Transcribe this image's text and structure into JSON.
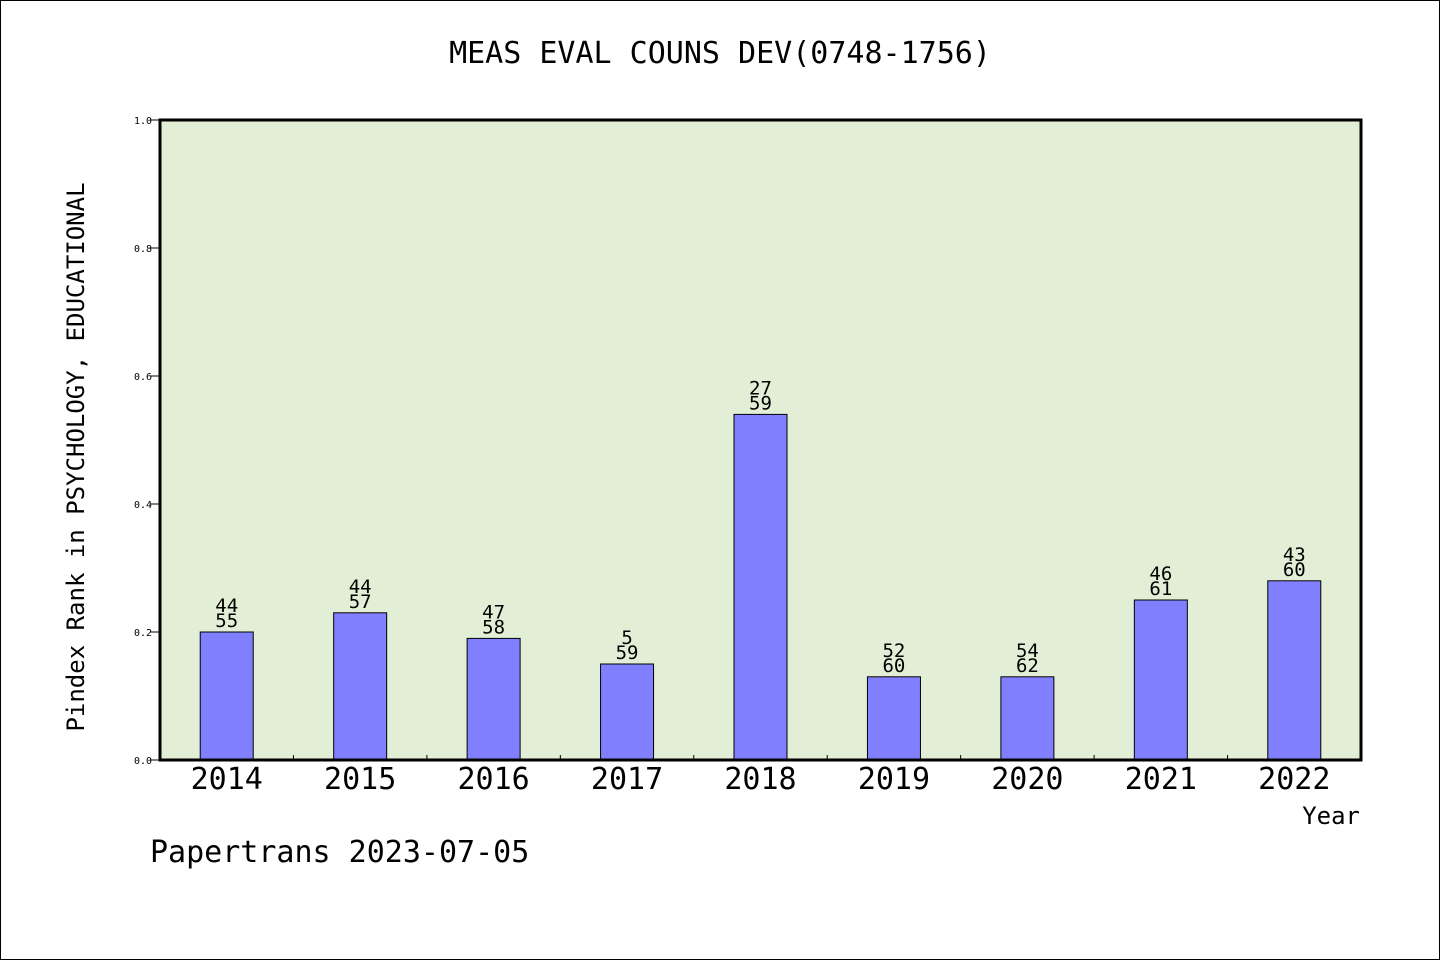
{
  "chart_data": {
    "type": "bar",
    "title": "MEAS EVAL COUNS DEV(0748-1756)",
    "ylabel": "Pindex Rank in PSYCHOLOGY, EDUCATIONAL",
    "xlabel": "Year",
    "footer": "Papertrans 2023-07-05",
    "ylim": [
      0,
      1.0
    ],
    "yticks": [
      "0.0",
      "0.2",
      "0.4",
      "0.6",
      "0.8",
      "1.0"
    ],
    "grid": false,
    "legend": "none",
    "colors": {
      "plot_bg": "#e2efd6",
      "bar": "#8080ff",
      "axis": "#000000"
    },
    "categories": [
      "2014",
      "2015",
      "2016",
      "2017",
      "2018",
      "2019",
      "2020",
      "2021",
      "2022"
    ],
    "values": [
      0.2,
      0.23,
      0.19,
      0.15,
      0.54,
      0.13,
      0.13,
      0.25,
      0.28
    ],
    "labels_top": [
      "44",
      "44",
      "47",
      "5",
      "27",
      "52",
      "54",
      "46",
      "43"
    ],
    "labels_bottom": [
      "55",
      "57",
      "58",
      "59",
      "59",
      "60",
      "62",
      "61",
      "60"
    ]
  }
}
